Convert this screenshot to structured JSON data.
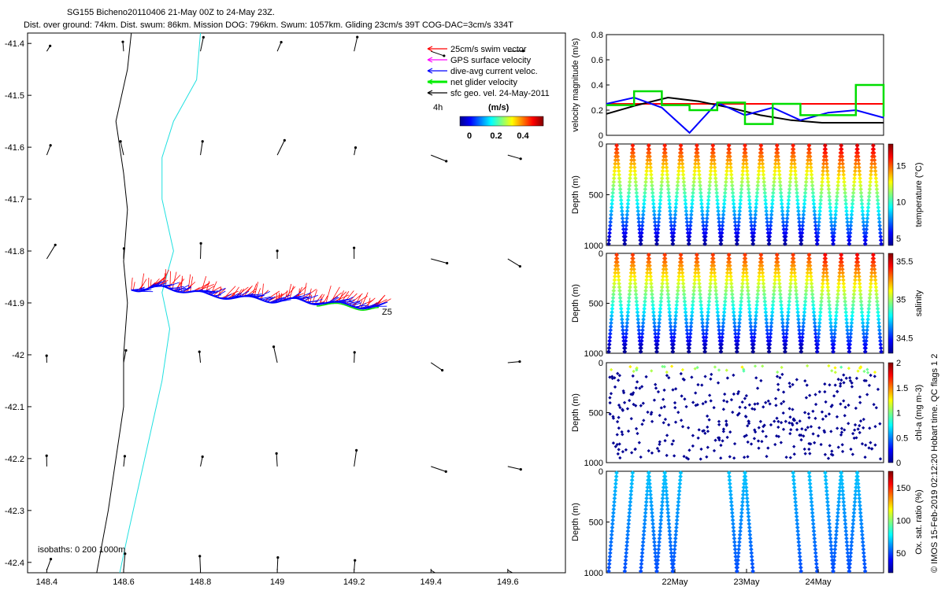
{
  "title": {
    "line1": "SG155 Bicheno20110406 21-May 00Z to 24-May 23Z.",
    "line2": "Dist. over ground: 74km. Dist. swum: 86km. Mission DOG: 796km. Swum: 1057km. Gliding 23cm/s 39T COG-DAC=3cm/s 334T"
  },
  "map": {
    "lon_ticks": [
      "148.4",
      "148.6",
      "148.8",
      "149",
      "149.2",
      "149.4",
      "149.6"
    ],
    "lat_ticks": [
      "-41.4",
      "-41.5",
      "-41.6",
      "-41.7",
      "-41.8",
      "-41.9",
      "-42",
      "-42.1",
      "-42.2",
      "-42.3",
      "-42.4"
    ],
    "legend": [
      {
        "label": "25cm/s swim vector",
        "color": "#ff0000"
      },
      {
        "label": "GPS surface velocity",
        "color": "#ff00ff"
      },
      {
        "label": "dive-avg current veloc.",
        "color": "#0000ff"
      },
      {
        "label": "net glider velocity",
        "color": "#00ee00"
      },
      {
        "label": "sfc geo. vel. 24-May-2011",
        "color": "#000000"
      }
    ],
    "colorbar_label": "(m/s)",
    "colorbar_ticks": [
      "0",
      "0.2",
      "0.4"
    ],
    "time_label": "4h",
    "end_label": "Z5",
    "isobath_label": "isobaths: 0   200  1000m"
  },
  "panels": {
    "velocity": {
      "ylabel": "velocity magnitude (m/s)",
      "yticks": [
        "0",
        "0.2",
        "0.4",
        "0.6",
        "0.8"
      ]
    },
    "temperature": {
      "ylabel": "Depth (m)",
      "cbar_label": "temperature (°C)",
      "cbar_ticks": [
        "5",
        "10",
        "15"
      ],
      "yticks": [
        "0",
        "500",
        "1000"
      ]
    },
    "salinity": {
      "ylabel": "Depth (m)",
      "cbar_label": "salinity",
      "cbar_ticks": [
        "34.5",
        "35",
        "35.5"
      ],
      "yticks": [
        "0",
        "500",
        "1000"
      ]
    },
    "chla": {
      "ylabel": "Depth (m)",
      "cbar_label": "chl-a (mg m-3)",
      "cbar_ticks": [
        "0",
        "0.5",
        "1",
        "1.5",
        "2"
      ],
      "yticks": [
        "0",
        "500",
        "1000"
      ]
    },
    "oxygen": {
      "ylabel": "Depth (m)",
      "cbar_label": "Ox. sat. ratio (%)",
      "cbar_ticks": [
        "50",
        "100",
        "150"
      ],
      "yticks": [
        "0",
        "500",
        "1000"
      ]
    },
    "date_ticks": [
      "22May",
      "23May",
      "24May"
    ]
  },
  "footer": "© IMOS 15-Feb-2019 02:12:20 Hobart time. QC flags 1  2",
  "chart_data": [
    {
      "type": "scatter",
      "title": "SG155 Bicheno20110406 21-May 00Z to 24-May 23Z.",
      "xlim": [
        148.35,
        149.75
      ],
      "ylim": [
        -42.42,
        -41.38
      ],
      "glider_track": {
        "x": [
          148.62,
          148.68,
          148.75,
          148.82,
          148.9,
          148.98,
          149.05,
          149.12,
          149.2,
          149.27
        ],
        "y": [
          -41.875,
          -41.87,
          -41.875,
          -41.885,
          -41.89,
          -41.895,
          -41.895,
          -41.9,
          -41.905,
          -41.91
        ]
      }
    },
    {
      "type": "line",
      "ylabel": "velocity magnitude (m/s)",
      "ylim": [
        0,
        0.8
      ],
      "series": [
        {
          "color": "#ff0000",
          "values": [
            0.25,
            0.25,
            0.25,
            0.25,
            0.25,
            0.25,
            0.25,
            0.25,
            0.25,
            0.25
          ]
        },
        {
          "color": "#000000",
          "values": [
            0.17,
            0.24,
            0.3,
            0.27,
            0.22,
            0.16,
            0.12,
            0.1,
            0.1,
            0.1
          ]
        },
        {
          "color": "#0000ff",
          "values": [
            0.25,
            0.3,
            0.22,
            0.02,
            0.26,
            0.16,
            0.22,
            0.12,
            0.18,
            0.2,
            0.14
          ]
        },
        {
          "color": "#00dd00",
          "values": [
            0.24,
            0.35,
            0.24,
            0.2,
            0.26,
            0.09,
            0.25,
            0.16,
            0.16,
            0.4,
            0.15
          ]
        }
      ]
    }
  ]
}
